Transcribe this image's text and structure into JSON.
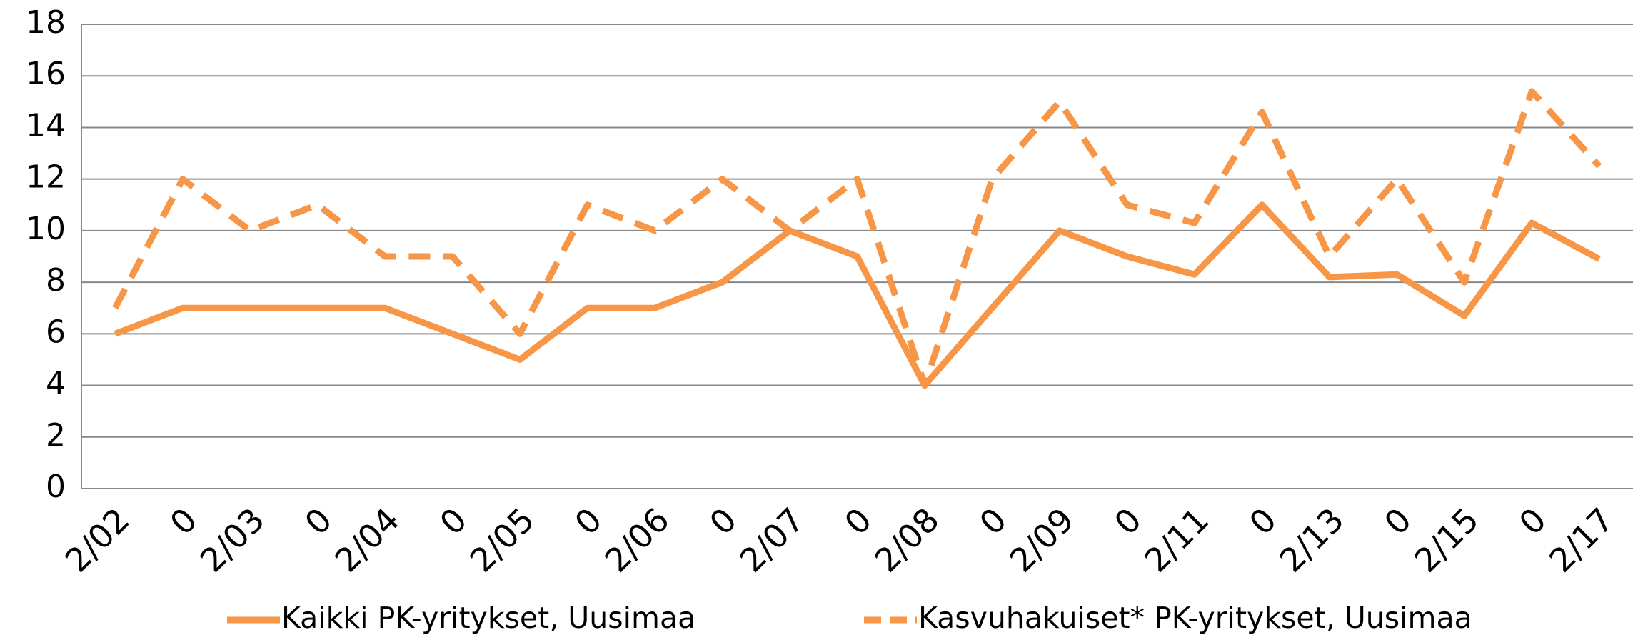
{
  "chart_data": {
    "type": "line",
    "categories": [
      "2/02",
      "0",
      "2/03",
      "0",
      "2/04",
      "0",
      "2/05",
      "0",
      "2/06",
      "0",
      "2/07",
      "0",
      "2/08",
      "0",
      "2/09",
      "0",
      "2/11",
      "0",
      "2/13",
      "0",
      "2/15",
      "0",
      "2/17"
    ],
    "series": [
      {
        "name": "Kaikki PK-yritykset, Uusimaa",
        "color": "#f79646",
        "dash": false,
        "values": [
          6,
          7,
          7,
          7,
          7,
          6,
          5,
          7,
          7,
          8,
          10,
          9,
          4,
          7,
          10,
          9,
          8.3,
          11,
          8.2,
          8.3,
          6.7,
          10.3,
          8.9
        ]
      },
      {
        "name": "Kasvuhakuiset* PK-yritykset, Uusimaa",
        "color": "#f79646",
        "dash": true,
        "values": [
          7,
          12,
          10,
          11,
          9,
          9,
          6,
          11,
          10,
          12,
          10,
          12,
          4,
          12,
          15,
          11,
          10.3,
          14.6,
          9,
          12,
          8,
          15.4,
          12.5
        ]
      }
    ],
    "ylim": [
      0,
      18
    ],
    "yticks": [
      0,
      2,
      4,
      6,
      8,
      10,
      12,
      14,
      16,
      18
    ],
    "grid": true,
    "legend": "bottom"
  }
}
